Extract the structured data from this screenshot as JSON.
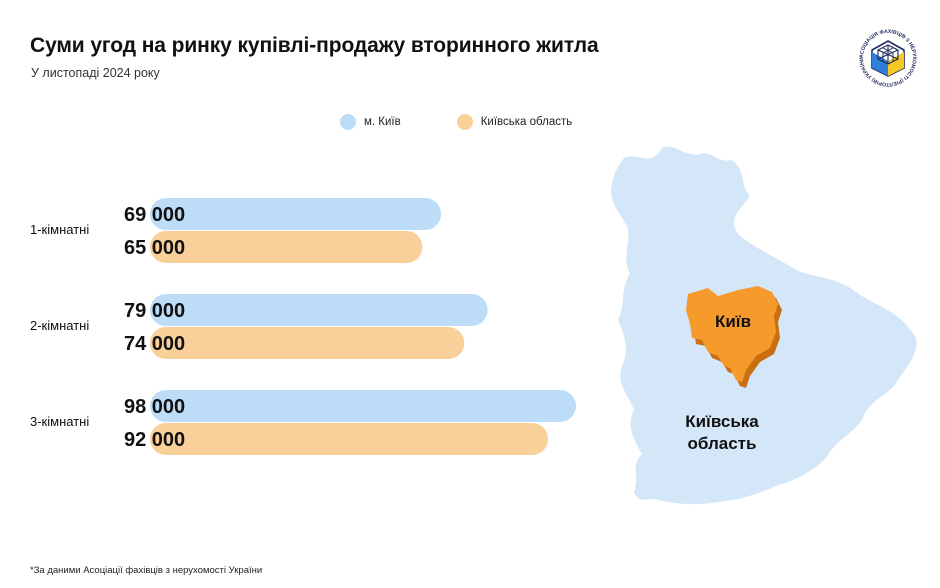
{
  "title": "Суми угод на ринку купівлі-продажу вторинного житла",
  "subtitle": "У листопаді 2024 року",
  "legend": [
    {
      "label": "м. Київ",
      "color": "#bcdcf7"
    },
    {
      "label": "Київська область",
      "color": "#f9d09a"
    }
  ],
  "chart_data": {
    "type": "bar",
    "orientation": "horizontal",
    "title": "Суми угод на ринку купівлі-продажу вторинного житла",
    "subtitle": "У листопаді 2024 року",
    "categories": [
      "1-кімнатні",
      "2-кімнатні",
      "3-кімнатні"
    ],
    "series": [
      {
        "name": "м. Київ",
        "values": [
          69000,
          79000,
          98000
        ],
        "labels": [
          "69 000",
          "79 000",
          "98 000"
        ],
        "color": "#bcdcf7"
      },
      {
        "name": "Київська область",
        "values": [
          65000,
          74000,
          92000
        ],
        "labels": [
          "65 000",
          "74 000",
          "92 000"
        ],
        "color": "#f9d09a"
      }
    ],
    "xlim": [
      0,
      98000
    ],
    "grid": false,
    "legend_position": "top"
  },
  "map": {
    "city_label": "Київ",
    "region_label_line1": "Київська",
    "region_label_line2": "область",
    "region_color": "#d4e7f8",
    "city_color": "#f79a2c",
    "city_shadow_color": "#c96f12"
  },
  "logo": {
    "icon": "association-logo",
    "text": "АСОЦІАЦІЯ ФАХІВЦІВ З НЕРУХОМОСТІ (РІЕЛТОРІВ) УКРАЇНИ • 1995 •"
  },
  "footnote": "*За даними Асоціації фахівців з нерухомості України"
}
